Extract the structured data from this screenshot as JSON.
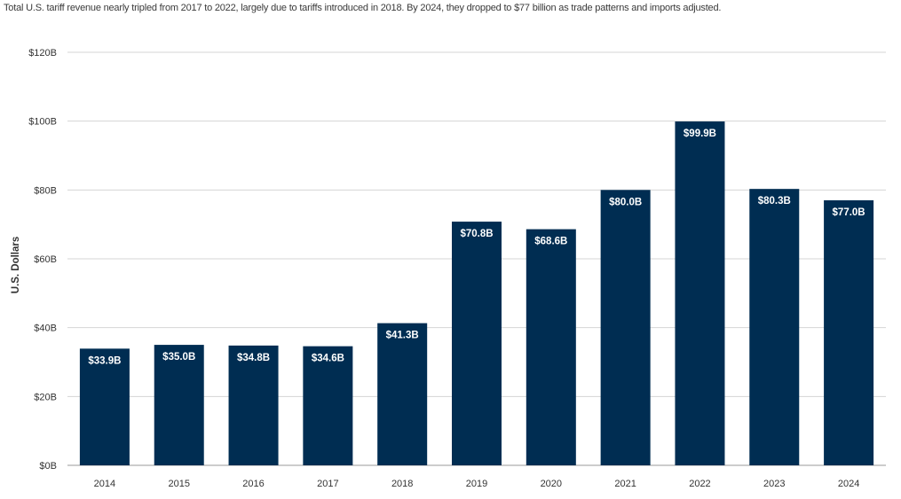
{
  "chart_data": {
    "type": "bar",
    "subtitle": "Total U.S. tariff revenue nearly tripled from 2017 to 2022, largely due to tariffs introduced in 2018. By 2024, they dropped to $77 billion as trade patterns and imports adjusted.",
    "ylabel": "U.S. Dollars",
    "xlabel": "",
    "categories": [
      "2014",
      "2015",
      "2016",
      "2017",
      "2018",
      "2019",
      "2020",
      "2021",
      "2022",
      "2023",
      "2024"
    ],
    "values": [
      33.9,
      35.0,
      34.8,
      34.6,
      41.3,
      70.8,
      68.6,
      80.0,
      99.9,
      80.3,
      77.0
    ],
    "data_labels": [
      "$33.9B",
      "$35.0B",
      "$34.8B",
      "$34.6B",
      "$41.3B",
      "$70.8B",
      "$68.6B",
      "$80.0B",
      "$99.9B",
      "$80.3B",
      "$77.0B"
    ],
    "y_ticks": [
      0,
      20,
      40,
      60,
      80,
      100,
      120
    ],
    "y_tick_labels": [
      "$0B",
      "$20B",
      "$40B",
      "$60B",
      "$80B",
      "$100B",
      "$120B"
    ],
    "ylim": [
      0,
      120
    ],
    "grid": true,
    "legend": "none",
    "bar_color": "#002d52",
    "grid_color": "#d4d4d4"
  }
}
